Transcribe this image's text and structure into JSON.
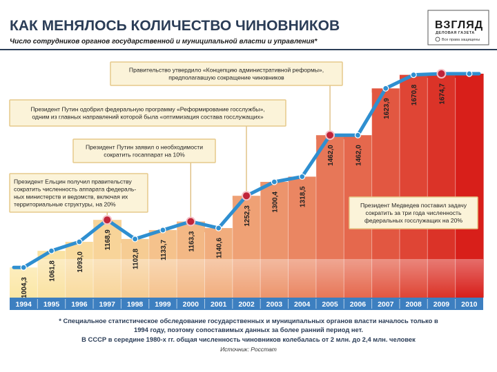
{
  "chart_data": {
    "type": "bar",
    "title": "КАК МЕНЯЛОСЬ КОЛИЧЕСТВО ЧИНОВНИКОВ",
    "subtitle": "Число сотрудников органов государственной и муниципальной власти и управления*",
    "categories": [
      "1994",
      "1995",
      "1996",
      "1997",
      "1998",
      "1999",
      "2000",
      "2001",
      "2002",
      "2003",
      "2004",
      "2005",
      "2006",
      "2007",
      "2008",
      "2009",
      "2010"
    ],
    "values": [
      1004.3,
      1061.8,
      1093.0,
      1168.9,
      1102.8,
      1133.7,
      1163.3,
      1140.6,
      1252.3,
      1300.4,
      1318.5,
      1462.0,
      1462.0,
      1623.9,
      1670.8,
      1674.7,
      1674.7
    ],
    "value_labels": [
      "1004,3",
      "1061,8",
      "1093,0",
      "1168,9",
      "1102,8",
      "1133,7",
      "1163,3",
      "1140,6",
      "1252,3",
      "1300,4",
      "1318,5",
      "1462,0",
      "1462,0",
      "1623,9",
      "1670,8",
      "1674,7",
      ""
    ],
    "ylim": [
      900,
      1720
    ],
    "marked_years": [
      "1997",
      "2000",
      "2002",
      "2005",
      "2009"
    ],
    "annotations": [
      {
        "id": "gov",
        "year": "2005",
        "lines": [
          "Правительство утвердило «Концепцию административной реформы»,",
          "предполагавшую сокращение чиновников"
        ]
      },
      {
        "id": "putin-program",
        "year": "2002",
        "lines": [
          "Президент Путин одобрил федеральную программу «Реформирование госслужбы»,",
          "одним из главных направлений которой была «оптимизация состава госслужащих»"
        ]
      },
      {
        "id": "putin-ten",
        "year": "2000",
        "lines": [
          "Президент Путин заявил о необходимости",
          "сократить госаппарат на 10%"
        ]
      },
      {
        "id": "yeltsin",
        "year": "1997",
        "lines": [
          "Президент Ельцин получил правительству",
          "сократить численность аппарата федераль-",
          "ных министерств и ведомств, включая их",
          "территориальные структуры, на 20%"
        ]
      },
      {
        "id": "medvedev",
        "year": "2009",
        "lines": [
          "Президент Медведев поставил задачу",
          "сократить за три года численность",
          "федеральных госслужащих на 20%"
        ]
      }
    ],
    "footnote": [
      "* Специальное статистическое обследование государственных и муниципальных органов власти началось только в",
      "1994 году, поэтому сопоставимых данных за более ранний период нет.",
      "В СССР в середине 1980-х гг. общая численность чиновников колебалась от 2 млн. до 2,4 млн. человек"
    ],
    "source": "Источник: Росстат"
  },
  "logo": {
    "name": "ВЗГЛЯД",
    "sub": "ДЕЛОВАЯ ГАЗЕТА",
    "tagline": "Все права защищены"
  },
  "colors": {
    "title": "#2b3d57",
    "line": "#2f8fd0",
    "marker": "#c0243a",
    "year_strip": "#3d7fc0",
    "bar_light": "#fbe7a6",
    "bar_dark": "#d81f1a",
    "annotation_fill": "#fbf3d9",
    "annotation_stroke": "#e6c98a"
  }
}
